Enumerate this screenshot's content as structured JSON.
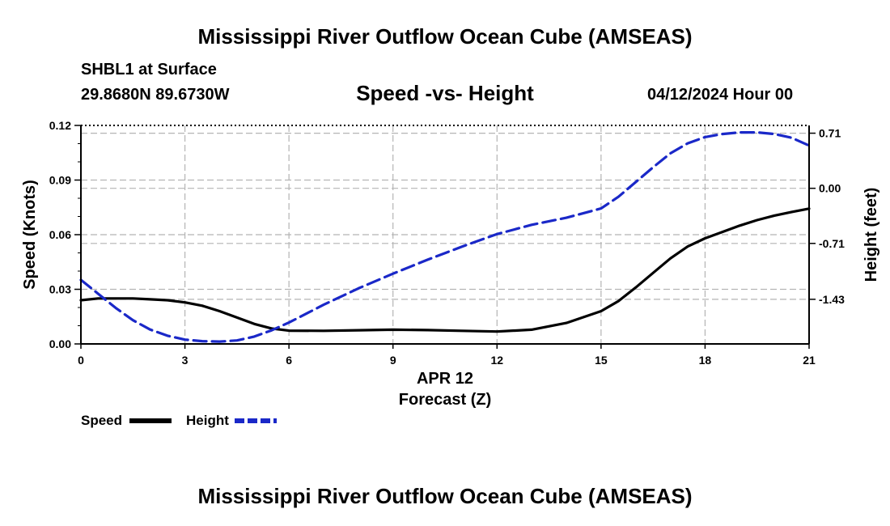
{
  "header": {
    "title": "Mississippi River Outflow Ocean Cube (AMSEAS)",
    "station": "SHBL1 at Surface",
    "coords": "29.8680N  89.6730W",
    "plot_title": "Speed -vs- Height",
    "run_time": "04/12/2024 Hour 00"
  },
  "footer": {
    "title": "Mississippi River Outflow Ocean Cube (AMSEAS)"
  },
  "chart_data": {
    "type": "line",
    "title": "Speed -vs- Height",
    "xlabel": "Forecast (Z)",
    "xdate_label": "APR 12",
    "ylabel": "Speed (Knots)",
    "y2label": "Height (feet)",
    "xlim": [
      0,
      21
    ],
    "ylim": [
      0,
      0.12
    ],
    "y2lim": [
      -2.005,
      0.81
    ],
    "x_ticks": [
      "0",
      "3",
      "6",
      "9",
      "12",
      "15",
      "18",
      "21"
    ],
    "y_ticks": [
      "0.00",
      "0.03",
      "0.06",
      "0.09",
      "0.12"
    ],
    "y2_ticks": [
      "0.71",
      "0.00",
      "-0.71",
      "-1.43"
    ],
    "grid": true,
    "legend_position": "bottom-left",
    "series": [
      {
        "name": "Speed",
        "axis": "left",
        "color": "#000000",
        "style": "solid",
        "x": [
          0,
          0.5,
          1,
          1.5,
          2,
          2.5,
          3,
          3.5,
          4,
          4.5,
          5,
          5.5,
          6,
          7,
          8,
          9,
          10,
          11,
          12,
          13,
          14,
          15,
          15.5,
          16,
          16.5,
          17,
          17.5,
          18,
          18.5,
          19,
          19.5,
          20,
          20.5,
          21
        ],
        "values": [
          0.024,
          0.025,
          0.025,
          0.025,
          0.0245,
          0.024,
          0.0228,
          0.021,
          0.018,
          0.0145,
          0.011,
          0.0085,
          0.0073,
          0.0072,
          0.0075,
          0.0078,
          0.0076,
          0.0072,
          0.0068,
          0.0078,
          0.0115,
          0.018,
          0.0235,
          0.031,
          0.039,
          0.047,
          0.0535,
          0.058,
          0.0615,
          0.065,
          0.068,
          0.0705,
          0.0725,
          0.0743
        ]
      },
      {
        "name": "Height",
        "axis": "right",
        "color": "#1a28c8",
        "style": "dashed",
        "x": [
          0,
          0.5,
          1,
          1.5,
          2,
          2.5,
          3,
          3.5,
          4,
          4.5,
          5,
          5.5,
          6,
          7,
          8,
          9,
          10,
          11,
          12,
          13,
          14,
          15,
          15.5,
          16,
          16.5,
          17,
          17.5,
          18,
          18.5,
          19,
          19.5,
          20,
          20.5,
          21
        ],
        "values": [
          -1.18,
          -1.36,
          -1.54,
          -1.7,
          -1.82,
          -1.9,
          -1.95,
          -1.97,
          -1.975,
          -1.96,
          -1.91,
          -1.83,
          -1.73,
          -1.5,
          -1.29,
          -1.1,
          -0.92,
          -0.75,
          -0.59,
          -0.47,
          -0.38,
          -0.26,
          -0.11,
          0.08,
          0.27,
          0.45,
          0.58,
          0.66,
          0.7,
          0.72,
          0.72,
          0.7,
          0.65,
          0.55
        ]
      }
    ]
  }
}
